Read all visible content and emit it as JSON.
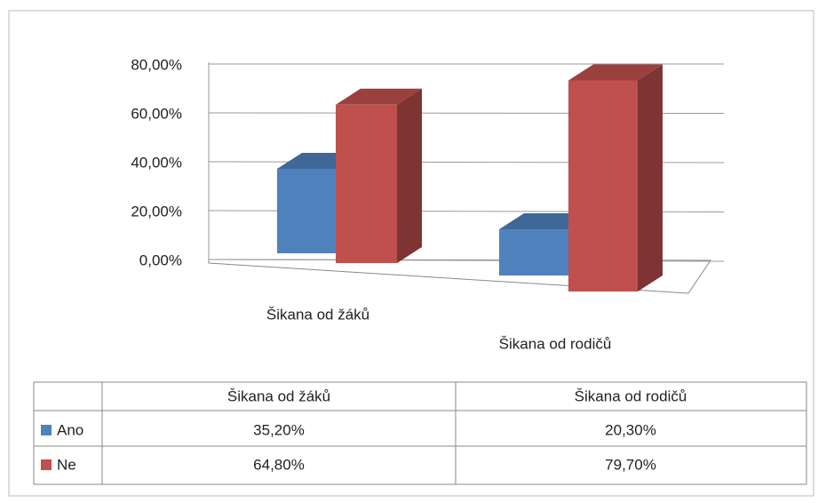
{
  "chart_data": {
    "type": "bar3d",
    "categories": [
      "Šikana od žáků",
      "Šikana od rodičů"
    ],
    "series": [
      {
        "name": "Ano",
        "color": "#4f81bd",
        "values": [
          35.2,
          20.3
        ],
        "value_labels": [
          "35,20%",
          "20,30%"
        ]
      },
      {
        "name": "Ne",
        "color": "#c0504d",
        "values": [
          64.8,
          79.7
        ],
        "value_labels": [
          "64,80%",
          "79,70%"
        ]
      }
    ],
    "ylim": [
      0,
      80
    ],
    "yticks": [
      {
        "value": 0,
        "label": "0,00%"
      },
      {
        "value": 20,
        "label": "20,00%"
      },
      {
        "value": 40,
        "label": "40,00%"
      },
      {
        "value": 60,
        "label": "60,00%"
      },
      {
        "value": 80,
        "label": "80,00%"
      }
    ],
    "grid": true,
    "legend": "table"
  }
}
